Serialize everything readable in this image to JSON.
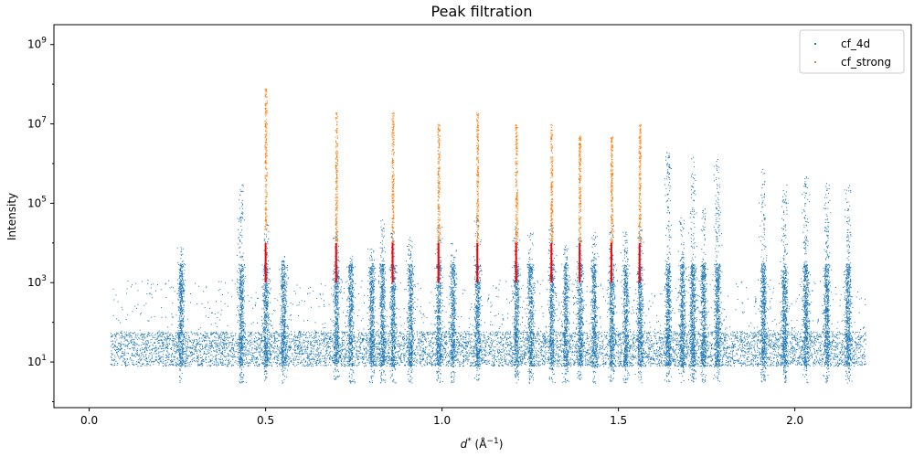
{
  "chart_data": {
    "type": "scatter",
    "title": "Peak filtration",
    "xlabel_main": "d",
    "xlabel_sup": "*",
    "xlabel_unit_open": " (Å",
    "xlabel_unit_sup": "−1",
    "xlabel_unit_close": ")",
    "ylabel": "Intensity",
    "xlim": [
      -0.1,
      2.33
    ],
    "ylim_log10": [
      -0.15,
      9.5
    ],
    "yscale": "log",
    "x_ticks": [
      {
        "value": 0.0,
        "label": "0.0"
      },
      {
        "value": 0.5,
        "label": "0.5"
      },
      {
        "value": 1.0,
        "label": "1.0"
      },
      {
        "value": 1.5,
        "label": "1.5"
      },
      {
        "value": 2.0,
        "label": "2.0"
      }
    ],
    "y_ticks": [
      {
        "exp": 1,
        "label_base": "10",
        "label_exp": "1"
      },
      {
        "exp": 3,
        "label_base": "10",
        "label_exp": "3"
      },
      {
        "exp": 5,
        "label_base": "10",
        "label_exp": "5"
      },
      {
        "exp": 7,
        "label_base": "10",
        "label_exp": "7"
      },
      {
        "exp": 9,
        "label_base": "10",
        "label_exp": "9"
      }
    ],
    "legend": {
      "placement": "top-right",
      "entries": [
        {
          "name": "cf_4d",
          "color": "#1f77b4"
        },
        {
          "name": "cf_strong",
          "color": "#ff7f0e"
        }
      ]
    },
    "grid": false,
    "background_range": {
      "x": [
        0.06,
        2.2
      ],
      "intensity": [
        8,
        60
      ]
    },
    "peaks_4d": [
      {
        "x": 0.26,
        "max": 8000
      },
      {
        "x": 0.43,
        "max": 300000
      },
      {
        "x": 0.5,
        "max": 30000
      },
      {
        "x": 0.55,
        "max": 5000
      },
      {
        "x": 0.7,
        "max": 20000
      },
      {
        "x": 0.74,
        "max": 5000
      },
      {
        "x": 0.8,
        "max": 8000
      },
      {
        "x": 0.83,
        "max": 50000
      },
      {
        "x": 0.86,
        "max": 20000
      },
      {
        "x": 0.91,
        "max": 15000
      },
      {
        "x": 0.99,
        "max": 30000
      },
      {
        "x": 1.03,
        "max": 10000
      },
      {
        "x": 1.1,
        "max": 50000
      },
      {
        "x": 1.21,
        "max": 30000
      },
      {
        "x": 1.25,
        "max": 20000
      },
      {
        "x": 1.31,
        "max": 30000
      },
      {
        "x": 1.35,
        "max": 10000
      },
      {
        "x": 1.39,
        "max": 15000
      },
      {
        "x": 1.43,
        "max": 20000
      },
      {
        "x": 1.48,
        "max": 30000
      },
      {
        "x": 1.52,
        "max": 20000
      },
      {
        "x": 1.56,
        "max": 30000
      },
      {
        "x": 1.64,
        "max": 2000000
      },
      {
        "x": 1.68,
        "max": 50000
      },
      {
        "x": 1.71,
        "max": 1500000
      },
      {
        "x": 1.74,
        "max": 100000
      },
      {
        "x": 1.78,
        "max": 1500000
      },
      {
        "x": 1.91,
        "max": 800000
      },
      {
        "x": 1.97,
        "max": 300000
      },
      {
        "x": 2.03,
        "max": 500000
      },
      {
        "x": 2.09,
        "max": 400000
      },
      {
        "x": 2.15,
        "max": 300000
      }
    ],
    "peaks_strong": [
      {
        "x": 0.5,
        "min": 20000,
        "max": 80000000
      },
      {
        "x": 0.7,
        "min": 10000,
        "max": 20000000
      },
      {
        "x": 0.86,
        "min": 10000,
        "max": 20000000
      },
      {
        "x": 0.99,
        "min": 10000,
        "max": 10000000
      },
      {
        "x": 1.1,
        "min": 10000,
        "max": 20000000
      },
      {
        "x": 1.21,
        "min": 10000,
        "max": 10000000
      },
      {
        "x": 1.31,
        "min": 10000,
        "max": 10000000
      },
      {
        "x": 1.39,
        "min": 10000,
        "max": 5000000
      },
      {
        "x": 1.48,
        "min": 10000,
        "max": 5000000
      },
      {
        "x": 1.56,
        "min": 10000,
        "max": 10000000
      }
    ],
    "filter_segments": {
      "color": "#ff0000",
      "x": [
        0.5,
        0.7,
        0.86,
        0.99,
        1.1,
        1.21,
        1.31,
        1.39,
        1.48,
        1.56
      ],
      "intensity_range": [
        1000,
        10000
      ]
    }
  }
}
